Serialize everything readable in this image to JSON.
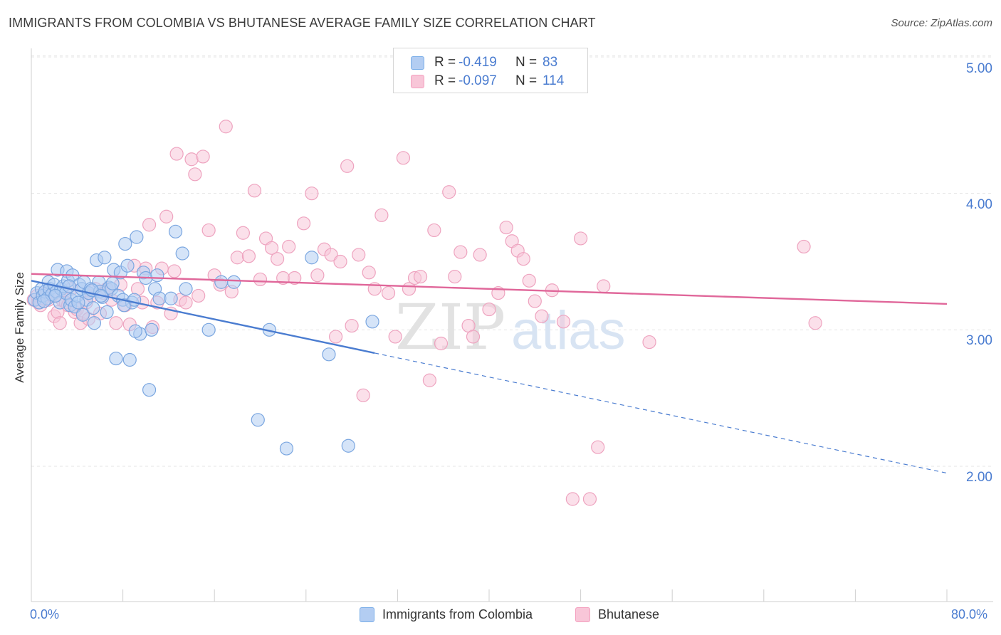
{
  "header": {
    "title": "IMMIGRANTS FROM COLOMBIA VS BHUTANESE AVERAGE FAMILY SIZE CORRELATION CHART",
    "source": "Source: ZipAtlas.com"
  },
  "legend": {
    "rows": [
      {
        "r_label": "R =",
        "r_value": "-0.419",
        "n_label": "N =",
        "n_value": "83",
        "color": "#7aaee8"
      },
      {
        "r_label": "R =",
        "r_value": "-0.097",
        "n_label": "N =",
        "n_value": "114",
        "color": "#f4a0bf"
      }
    ]
  },
  "bottom_legend": {
    "series1": "Immigrants from Colombia",
    "series2": "Bhutanese"
  },
  "colors": {
    "blue": "#4a7cd0",
    "blue_fill": "#b3cdf2",
    "pink": "#e0679a",
    "pink_fill": "#f8c6d8",
    "grid": "#e4e4e4",
    "axis_text": "#4a7cd0"
  },
  "watermark": {
    "zip": "ZIP",
    "atlas": "atlas"
  },
  "chart_data": {
    "type": "scatter",
    "title": "IMMIGRANTS FROM COLOMBIA VS BHUTANESE AVERAGE FAMILY SIZE CORRELATION CHART",
    "xlabel": "",
    "ylabel": "Average Family Size",
    "xlim": [
      0,
      80
    ],
    "ylim": [
      1.0,
      5.1
    ],
    "x_tick_labels": [
      "0.0%",
      "80.0%"
    ],
    "y_ticks": [
      2.0,
      3.0,
      4.0,
      5.0
    ],
    "y_tick_labels": [
      "2.00",
      "3.00",
      "4.00",
      "5.00"
    ],
    "grid": true,
    "legend_position": "top-center",
    "series": [
      {
        "name": "Immigrants from Colombia",
        "r": -0.419,
        "n": 83,
        "trend": {
          "x0": 0,
          "y0": 3.36,
          "x1": 30,
          "y1": 2.83,
          "dashed_to_x": 80,
          "dashed_to_y": 1.95
        },
        "points": [
          [
            0.3,
            3.22
          ],
          [
            0.5,
            3.27
          ],
          [
            0.7,
            3.2
          ],
          [
            0.9,
            3.3
          ],
          [
            1.0,
            3.25
          ],
          [
            1.2,
            3.28
          ],
          [
            1.4,
            3.23
          ],
          [
            1.5,
            3.35
          ],
          [
            1.6,
            3.3
          ],
          [
            1.8,
            3.26
          ],
          [
            2.0,
            3.33
          ],
          [
            2.2,
            3.28
          ],
          [
            2.3,
            3.44
          ],
          [
            2.5,
            3.2
          ],
          [
            2.6,
            3.3
          ],
          [
            2.8,
            3.32
          ],
          [
            3.0,
            3.27
          ],
          [
            3.1,
            3.43
          ],
          [
            3.2,
            3.36
          ],
          [
            3.4,
            3.18
          ],
          [
            3.5,
            3.22
          ],
          [
            3.6,
            3.4
          ],
          [
            3.8,
            3.17
          ],
          [
            4.0,
            3.25
          ],
          [
            4.2,
            3.33
          ],
          [
            4.4,
            3.3
          ],
          [
            4.5,
            3.11
          ],
          [
            4.6,
            3.35
          ],
          [
            4.8,
            3.22
          ],
          [
            5.0,
            3.27
          ],
          [
            5.2,
            3.3
          ],
          [
            5.4,
            3.16
          ],
          [
            5.5,
            3.05
          ],
          [
            5.7,
            3.51
          ],
          [
            5.9,
            3.35
          ],
          [
            6.0,
            3.28
          ],
          [
            6.2,
            3.24
          ],
          [
            6.4,
            3.53
          ],
          [
            6.6,
            3.13
          ],
          [
            6.8,
            3.31
          ],
          [
            7.0,
            3.3
          ],
          [
            7.2,
            3.44
          ],
          [
            7.4,
            2.79
          ],
          [
            7.6,
            3.25
          ],
          [
            7.8,
            3.42
          ],
          [
            8.0,
            3.22
          ],
          [
            8.2,
            3.63
          ],
          [
            8.4,
            3.47
          ],
          [
            8.6,
            2.78
          ],
          [
            8.8,
            3.2
          ],
          [
            9.0,
            3.22
          ],
          [
            9.2,
            3.68
          ],
          [
            9.5,
            2.97
          ],
          [
            9.8,
            3.42
          ],
          [
            10.0,
            3.38
          ],
          [
            10.3,
            2.56
          ],
          [
            10.5,
            3.0
          ],
          [
            10.8,
            3.3
          ],
          [
            11.0,
            3.4
          ],
          [
            11.2,
            3.23
          ],
          [
            12.2,
            3.23
          ],
          [
            12.6,
            3.72
          ],
          [
            13.2,
            3.56
          ],
          [
            13.5,
            3.3
          ],
          [
            15.5,
            3.0
          ],
          [
            16.6,
            3.35
          ],
          [
            17.7,
            3.35
          ],
          [
            19.8,
            2.34
          ],
          [
            20.8,
            3.0
          ],
          [
            22.3,
            2.13
          ],
          [
            24.5,
            3.53
          ],
          [
            26.0,
            2.82
          ],
          [
            27.7,
            2.15
          ],
          [
            29.8,
            3.06
          ],
          [
            1.1,
            3.21
          ],
          [
            2.1,
            3.25
          ],
          [
            3.3,
            3.32
          ],
          [
            4.1,
            3.2
          ],
          [
            5.3,
            3.29
          ],
          [
            6.1,
            3.25
          ],
          [
            7.1,
            3.34
          ],
          [
            8.1,
            3.18
          ],
          [
            9.1,
            2.99
          ]
        ]
      },
      {
        "name": "Bhutanese",
        "r": -0.097,
        "n": 114,
        "trend": {
          "x0": 0,
          "y0": 3.41,
          "x1": 80,
          "y1": 3.19
        },
        "points": [
          [
            0.2,
            3.22
          ],
          [
            0.5,
            3.25
          ],
          [
            0.8,
            3.18
          ],
          [
            1.2,
            3.28
          ],
          [
            1.5,
            3.22
          ],
          [
            1.8,
            3.25
          ],
          [
            2.0,
            3.1
          ],
          [
            2.3,
            3.13
          ],
          [
            2.5,
            3.05
          ],
          [
            2.7,
            3.22
          ],
          [
            3.0,
            3.2
          ],
          [
            3.2,
            3.18
          ],
          [
            3.5,
            3.3
          ],
          [
            3.8,
            3.13
          ],
          [
            4.0,
            3.15
          ],
          [
            4.3,
            3.05
          ],
          [
            4.5,
            3.12
          ],
          [
            4.8,
            3.2
          ],
          [
            5.0,
            3.08
          ],
          [
            5.3,
            3.25
          ],
          [
            5.6,
            3.3
          ],
          [
            6.0,
            3.12
          ],
          [
            6.3,
            3.27
          ],
          [
            6.6,
            3.3
          ],
          [
            7.0,
            3.22
          ],
          [
            7.4,
            3.05
          ],
          [
            7.8,
            3.33
          ],
          [
            8.2,
            3.18
          ],
          [
            8.6,
            3.04
          ],
          [
            9.0,
            3.47
          ],
          [
            9.3,
            3.3
          ],
          [
            9.7,
            3.2
          ],
          [
            10.0,
            3.45
          ],
          [
            10.3,
            3.77
          ],
          [
            10.6,
            3.02
          ],
          [
            11.0,
            3.2
          ],
          [
            11.4,
            3.45
          ],
          [
            11.8,
            3.83
          ],
          [
            12.2,
            3.12
          ],
          [
            12.5,
            3.43
          ],
          [
            12.7,
            4.29
          ],
          [
            13.0,
            3.22
          ],
          [
            13.5,
            3.2
          ],
          [
            14.0,
            4.25
          ],
          [
            14.3,
            4.14
          ],
          [
            14.6,
            3.25
          ],
          [
            15.0,
            4.27
          ],
          [
            15.5,
            3.73
          ],
          [
            16.0,
            3.4
          ],
          [
            16.5,
            3.33
          ],
          [
            17.0,
            4.49
          ],
          [
            17.5,
            3.28
          ],
          [
            18.0,
            3.53
          ],
          [
            18.5,
            3.71
          ],
          [
            19.0,
            3.54
          ],
          [
            19.5,
            4.02
          ],
          [
            20.0,
            3.37
          ],
          [
            20.5,
            3.67
          ],
          [
            21.0,
            3.6
          ],
          [
            21.5,
            3.52
          ],
          [
            22.0,
            3.38
          ],
          [
            22.5,
            3.61
          ],
          [
            23.0,
            3.38
          ],
          [
            23.8,
            3.78
          ],
          [
            24.5,
            4.0
          ],
          [
            25.0,
            3.4
          ],
          [
            25.6,
            3.59
          ],
          [
            26.2,
            3.55
          ],
          [
            26.6,
            2.95
          ],
          [
            27.0,
            3.5
          ],
          [
            27.6,
            4.2
          ],
          [
            28.0,
            3.03
          ],
          [
            28.6,
            3.55
          ],
          [
            29.0,
            2.52
          ],
          [
            29.5,
            3.42
          ],
          [
            30.0,
            3.3
          ],
          [
            30.6,
            3.84
          ],
          [
            31.2,
            3.27
          ],
          [
            31.8,
            2.95
          ],
          [
            32.5,
            4.26
          ],
          [
            33.0,
            3.3
          ],
          [
            33.5,
            3.38
          ],
          [
            34.0,
            3.39
          ],
          [
            34.8,
            2.63
          ],
          [
            35.2,
            3.73
          ],
          [
            35.8,
            2.9
          ],
          [
            36.5,
            4.01
          ],
          [
            37.0,
            3.39
          ],
          [
            37.5,
            3.57
          ],
          [
            38.2,
            3.03
          ],
          [
            38.6,
            2.95
          ],
          [
            39.2,
            3.55
          ],
          [
            40.0,
            3.15
          ],
          [
            40.8,
            3.27
          ],
          [
            41.5,
            3.75
          ],
          [
            42.0,
            3.65
          ],
          [
            42.5,
            3.58
          ],
          [
            43.0,
            3.52
          ],
          [
            43.5,
            3.36
          ],
          [
            44.0,
            3.21
          ],
          [
            44.6,
            3.1
          ],
          [
            45.5,
            3.29
          ],
          [
            46.5,
            3.06
          ],
          [
            47.3,
            1.76
          ],
          [
            48.0,
            3.67
          ],
          [
            48.8,
            1.76
          ],
          [
            49.5,
            2.14
          ],
          [
            50.0,
            3.32
          ],
          [
            54.0,
            2.91
          ],
          [
            67.5,
            3.61
          ],
          [
            68.5,
            3.05
          ],
          [
            0.6,
            3.2
          ],
          [
            1.0,
            3.23
          ],
          [
            1.3,
            3.26
          ]
        ]
      }
    ]
  }
}
